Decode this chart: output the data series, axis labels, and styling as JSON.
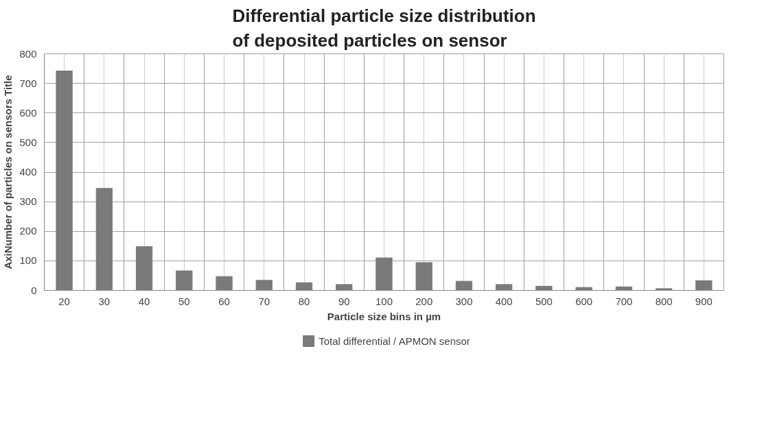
{
  "chart_data": {
    "type": "bar",
    "title": "Differential particle size distribution\nof deposited particles on sensor",
    "xlabel": "Particle size bins in µm",
    "ylabel": "AxiNumber of particles on sensors Title",
    "categories": [
      "20",
      "30",
      "40",
      "50",
      "60",
      "70",
      "80",
      "90",
      "100",
      "200",
      "300",
      "400",
      "500",
      "600",
      "700",
      "800",
      "900"
    ],
    "series": [
      {
        "name": "Total differential / APMON sensor",
        "color": "#7a7a7a",
        "values": [
          742,
          345,
          148,
          66,
          47,
          34,
          26,
          20,
          110,
          94,
          31,
          20,
          14,
          10,
          12,
          6,
          33
        ]
      }
    ],
    "ylim": [
      0,
      800
    ],
    "yticks": [
      0,
      100,
      200,
      300,
      400,
      500,
      600,
      700,
      800
    ],
    "grid": true,
    "legend": "bottom"
  }
}
